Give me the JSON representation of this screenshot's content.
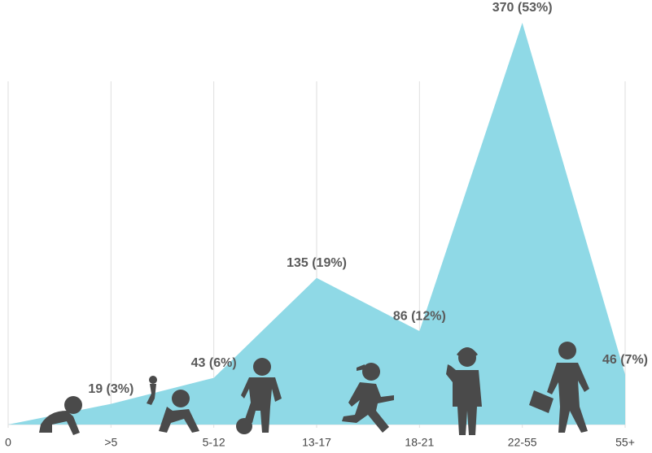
{
  "chart_data": {
    "type": "area",
    "categories": [
      "0",
      ">5",
      "5-12",
      "13-17",
      "18-21",
      "22-55",
      "55+"
    ],
    "values": [
      0,
      19,
      43,
      135,
      86,
      370,
      46
    ],
    "value_labels": [
      null,
      "19 (3%)",
      "43 (6%)",
      "135 (19%)",
      "86 (12%)",
      "370 (53%)",
      "46 (7%)"
    ],
    "color": "#8fd9e6",
    "ylim": [
      0,
      370
    ],
    "grid": true
  }
}
